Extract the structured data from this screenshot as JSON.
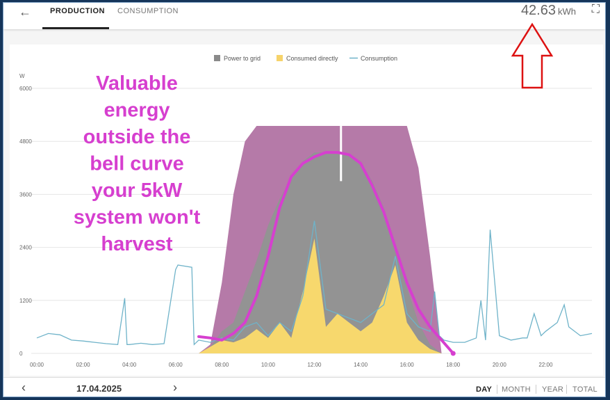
{
  "header": {
    "tabs": [
      {
        "label": "PRODUCTION",
        "active": true
      },
      {
        "label": "CONSUMPTION",
        "active": false
      }
    ],
    "energy_value": "42.63",
    "energy_unit": "kWh",
    "back_icon": "arrow-left-icon",
    "fullscreen_icon": "fullscreen-icon"
  },
  "annotation": {
    "lines": [
      "Valuable",
      "energy",
      "outside the",
      "bell curve",
      "your 5kW",
      "system won't",
      "harvest"
    ],
    "color": "#d63fcf"
  },
  "footer": {
    "date": "17.04.2025",
    "periods": [
      "DAY",
      "MONTH",
      "YEAR",
      "TOTAL"
    ],
    "active_period": "DAY"
  },
  "chart_data": {
    "type": "area",
    "ylabel": "W",
    "ylim": [
      0,
      6000
    ],
    "yticks": [
      "0",
      "1200",
      "2400",
      "3600",
      "4800",
      "6000"
    ],
    "xticks": [
      "00:00",
      "02:00",
      "04:00",
      "06:00",
      "08:00",
      "10:00",
      "12:00",
      "14:00",
      "16:00",
      "18:00",
      "20:00",
      "22:00"
    ],
    "legend": [
      {
        "name": "Power to grid",
        "color": "#8a8a8a"
      },
      {
        "name": "Consumed directly",
        "color": "#f6d36b"
      },
      {
        "name": "Consumption",
        "color": "#6fb3c9"
      }
    ],
    "colors": {
      "potential": "#b57aa8",
      "grid": "#939393",
      "direct": "#f7d86d",
      "consumption": "#6fb3c9",
      "bell": "#d63fcf"
    },
    "x_hours": [
      7.0,
      7.5,
      8.0,
      8.5,
      9.0,
      9.5,
      10.0,
      10.5,
      11.0,
      11.5,
      12.0,
      12.5,
      13.0,
      13.5,
      14.0,
      14.5,
      15.0,
      15.5,
      16.0,
      16.5,
      17.0,
      17.5
    ],
    "potential": [
      0,
      200,
      1600,
      3600,
      4800,
      5150,
      5150,
      5150,
      5150,
      5150,
      5150,
      5150,
      5150,
      5150,
      5150,
      5150,
      5150,
      5150,
      5150,
      4200,
      2200,
      0
    ],
    "production": [
      0,
      150,
      500,
      700,
      1400,
      2100,
      2900,
      3500,
      3950,
      4350,
      4550,
      4550,
      4550,
      4500,
      4350,
      3900,
      3300,
      2500,
      1500,
      700,
      200,
      0
    ],
    "direct": [
      0,
      150,
      300,
      250,
      350,
      550,
      350,
      700,
      350,
      1400,
      2600,
      600,
      900,
      700,
      500,
      700,
      1300,
      2000,
      700,
      300,
      100,
      0
    ],
    "consumption_series": {
      "x": [
        0,
        0.5,
        1,
        1.5,
        2,
        2.5,
        3,
        3.5,
        3.8,
        3.9,
        4.0,
        4.5,
        5,
        5.5,
        6.0,
        6.1,
        6.7,
        6.8,
        7.0,
        7.5,
        8,
        8.5,
        9,
        9.5,
        10,
        10.5,
        11,
        11.5,
        12,
        12.5,
        13,
        13.5,
        14,
        14.5,
        15,
        15.5,
        16,
        16.5,
        17,
        17.2,
        17.4,
        17.6,
        18,
        18.5,
        19,
        19.2,
        19.4,
        19.6,
        20,
        20.5,
        21,
        21.2,
        21.5,
        21.8,
        22,
        22.5,
        22.8,
        23,
        23.5,
        24
      ],
      "y": [
        350,
        450,
        420,
        300,
        280,
        250,
        220,
        200,
        1250,
        200,
        200,
        230,
        200,
        220,
        1900,
        2000,
        1950,
        200,
        300,
        250,
        350,
        300,
        600,
        700,
        400,
        700,
        500,
        1300,
        3000,
        1000,
        900,
        800,
        700,
        900,
        1100,
        2200,
        900,
        600,
        500,
        1400,
        400,
        300,
        250,
        250,
        350,
        1200,
        300,
        2800,
        400,
        300,
        350,
        350,
        900,
        400,
        500,
        700,
        1100,
        600,
        400,
        450
      ]
    },
    "bell_curve": {
      "x": [
        7.0,
        7.5,
        8.0,
        8.5,
        9.0,
        9.5,
        10.0,
        10.5,
        11.0,
        11.5,
        12.0,
        12.5,
        13.0,
        13.5,
        14.0,
        14.5,
        15.0,
        15.5,
        16.0,
        16.5,
        17.0,
        17.5,
        18.0
      ],
      "y": [
        380,
        350,
        300,
        450,
        700,
        1300,
        2200,
        3300,
        4000,
        4300,
        4450,
        4550,
        4550,
        4500,
        4300,
        3800,
        3200,
        2400,
        1600,
        1000,
        600,
        300,
        0
      ]
    }
  }
}
